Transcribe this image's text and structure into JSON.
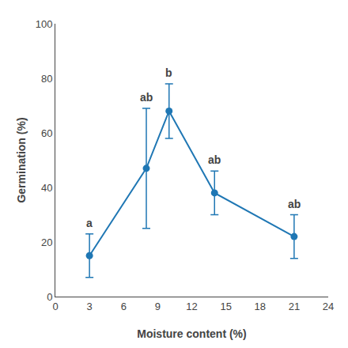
{
  "chart_data": {
    "type": "line",
    "x": [
      3,
      8,
      10,
      14,
      21
    ],
    "values": [
      15,
      47,
      68,
      38,
      22
    ],
    "yerr_lower": [
      8,
      22,
      10,
      8,
      8
    ],
    "yerr_upper": [
      8,
      22,
      10,
      8,
      8
    ],
    "annotations": [
      "a",
      "ab",
      "b",
      "ab",
      "ab"
    ],
    "xlabel": "Moisture content (%)",
    "ylabel": "Germination (%)",
    "xlim": [
      0,
      24
    ],
    "ylim": [
      0,
      100
    ],
    "xticks": [
      0,
      3,
      6,
      9,
      12,
      15,
      18,
      21,
      24
    ],
    "yticks": [
      0,
      20,
      40,
      60,
      80,
      100
    ],
    "marker": "circle",
    "line_style": "solid",
    "grid": false
  }
}
